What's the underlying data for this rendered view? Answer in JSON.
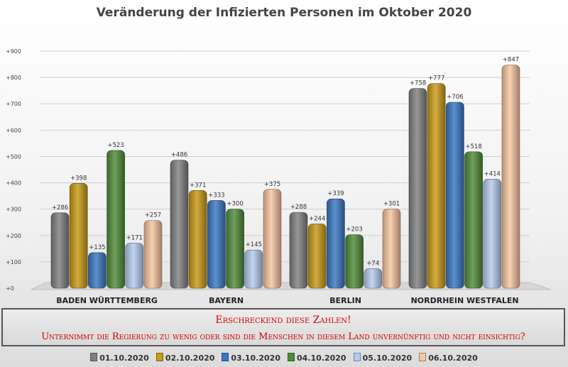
{
  "chart_data": {
    "type": "bar",
    "title": "Veränderung der Infizierten Personen im Oktober 2020",
    "categories": [
      "BADEN WÜRTTEMBERG",
      "BAYERN",
      "BERLIN",
      "NORDRHEIN WESTFALEN"
    ],
    "series": [
      {
        "name": "01.10.2020",
        "color": "#808080",
        "values": [
          286,
          486,
          288,
          758
        ]
      },
      {
        "name": "02.10.2020",
        "color": "#c99a16",
        "values": [
          398,
          371,
          244,
          777
        ]
      },
      {
        "name": "03.10.2020",
        "color": "#3a78c2",
        "values": [
          135,
          333,
          339,
          706
        ]
      },
      {
        "name": "04.10.2020",
        "color": "#4f8c3a",
        "values": [
          523,
          300,
          203,
          518
        ]
      },
      {
        "name": "05.10.2020",
        "color": "#b6ccef",
        "values": [
          171,
          145,
          74,
          414
        ]
      },
      {
        "name": "06.10.2020",
        "color": "#f7c4a0",
        "values": [
          257,
          375,
          301,
          847
        ]
      }
    ],
    "data_labels": [
      [
        "+286",
        "+486",
        "+288",
        "+758"
      ],
      [
        "+398",
        "+371",
        "+244",
        "+777"
      ],
      [
        "+135",
        "+333",
        "+339",
        "+706"
      ],
      [
        "+523",
        "+300",
        "+203",
        "+518"
      ],
      [
        "+171",
        "+145",
        "+74",
        "+414"
      ],
      [
        "+257",
        "+375",
        "+301",
        "+847"
      ]
    ],
    "yticks": [
      "+0",
      "+100",
      "+200",
      "+300",
      "+400",
      "+500",
      "+600",
      "+700",
      "+800",
      "+900"
    ],
    "ylim": [
      0,
      900
    ],
    "grid": true,
    "legend": "bottom"
  },
  "callout": {
    "line1": "Erschreckend diese Zahlen!",
    "line2": "Unternimmt die Regierung zu wenig oder sind die Menschen in diesem Land unvernünftig und nicht einsichtig?"
  }
}
